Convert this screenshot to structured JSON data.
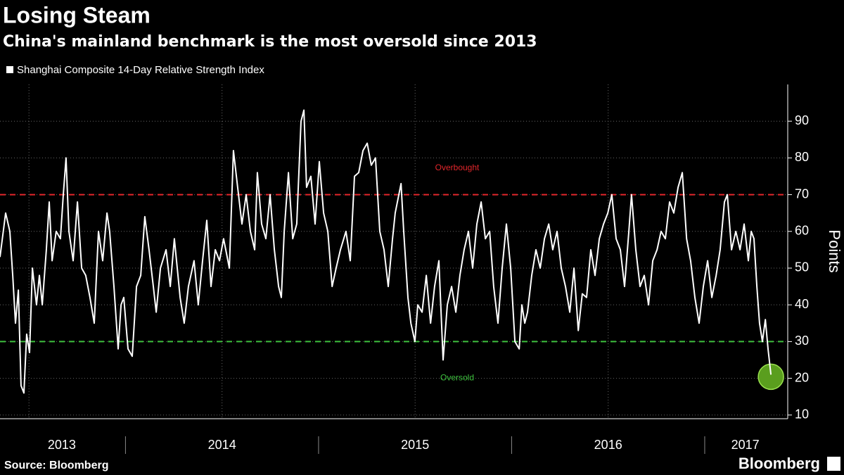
{
  "chart_data": {
    "type": "line",
    "title": "Losing Steam",
    "subtitle": "China's mainland benchmark is the most oversold since 2013",
    "y_label": "Points",
    "source": "Source: Bloomberg",
    "logo": "Bloomberg",
    "series": [
      {
        "name": "Shanghai Composite 14-Day Relative Strength Index",
        "color": "#ffffff"
      }
    ],
    "x": [
      2013.35,
      2013.379,
      2013.401,
      2013.416,
      2013.43,
      2013.445,
      2013.459,
      2013.474,
      2013.488,
      2013.503,
      2013.518,
      2013.539,
      2013.554,
      2013.569,
      2013.59,
      2013.605,
      2013.62,
      2013.641,
      2013.663,
      2013.678,
      2013.692,
      2013.707,
      2013.729,
      2013.751,
      2013.773,
      2013.794,
      2013.816,
      2013.838,
      2013.86,
      2013.882,
      2013.904,
      2013.918,
      2013.94,
      2013.962,
      2013.977,
      2013.991,
      2014.013,
      2014.035,
      2014.057,
      2014.079,
      2014.1,
      2014.122,
      2014.144,
      2014.159,
      2014.181,
      2014.21,
      2014.232,
      2014.253,
      2014.283,
      2014.304,
      2014.326,
      2014.355,
      2014.377,
      2014.399,
      2014.421,
      2014.443,
      2014.465,
      2014.487,
      2014.508,
      2014.538,
      2014.559,
      2014.581,
      2014.603,
      2014.625,
      2014.647,
      2014.669,
      2014.683,
      2014.705,
      2014.727,
      2014.749,
      2014.771,
      2014.793,
      2014.807,
      2014.822,
      2014.844,
      2014.866,
      2014.887,
      2014.909,
      2014.924,
      2014.938,
      2014.96,
      2014.982,
      2015.004,
      2015.026,
      2015.048,
      2015.07,
      2015.091,
      2015.113,
      2015.142,
      2015.164,
      2015.186,
      2015.208,
      2015.23,
      2015.252,
      2015.273,
      2015.295,
      2015.317,
      2015.339,
      2015.361,
      2015.383,
      2015.397,
      2015.427,
      2015.441,
      2015.463,
      2015.478,
      2015.499,
      2015.514,
      2015.536,
      2015.558,
      2015.58,
      2015.601,
      2015.623,
      2015.645,
      2015.667,
      2015.689,
      2015.711,
      2015.732,
      2015.754,
      2015.776,
      2015.798,
      2015.82,
      2015.842,
      2015.864,
      2015.886,
      2015.907,
      2015.929,
      2015.951,
      2015.973,
      2015.995,
      2016.017,
      2016.039,
      2016.053,
      2016.068,
      2016.082,
      2016.104,
      2016.126,
      2016.148,
      2016.17,
      2016.192,
      2016.213,
      2016.235,
      2016.257,
      2016.279,
      2016.301,
      2016.323,
      2016.345,
      2016.366,
      2016.388,
      2016.41,
      2016.432,
      2016.454,
      2016.476,
      2016.498,
      2016.519,
      2016.541,
      2016.563,
      2016.585,
      2016.607,
      2016.621,
      2016.643,
      2016.665,
      2016.687,
      2016.709,
      2016.731,
      2016.753,
      2016.774,
      2016.796,
      2016.818,
      2016.84,
      2016.862,
      2016.884,
      2016.906,
      2016.927,
      2016.949,
      2016.971,
      2016.993,
      2017.015,
      2017.037,
      2017.059,
      2017.08,
      2017.102,
      2017.117,
      2017.139,
      2017.161,
      2017.183,
      2017.204,
      2017.226,
      2017.241,
      2017.255,
      2017.27,
      2017.284,
      2017.299,
      2017.314,
      2017.328,
      2017.343
    ],
    "values": [
      53,
      65,
      60,
      48,
      35,
      44,
      18,
      16,
      32,
      27,
      50,
      40,
      48,
      40,
      55,
      68,
      52,
      60,
      58,
      70,
      80,
      60,
      52,
      68,
      50,
      48,
      42,
      35,
      60,
      52,
      65,
      60,
      45,
      28,
      40,
      42,
      28,
      26,
      45,
      48,
      64,
      55,
      45,
      38,
      50,
      55,
      45,
      58,
      42,
      35,
      45,
      52,
      40,
      52,
      63,
      45,
      55,
      52,
      58,
      50,
      82,
      72,
      62,
      70,
      60,
      55,
      76,
      62,
      58,
      70,
      55,
      45,
      42,
      60,
      76,
      58,
      62,
      90,
      93,
      72,
      75,
      62,
      79,
      65,
      60,
      45,
      50,
      55,
      60,
      52,
      75,
      76,
      82,
      84,
      78,
      80,
      60,
      55,
      45,
      58,
      65,
      73,
      60,
      42,
      35,
      30,
      40,
      38,
      48,
      35,
      45,
      52,
      25,
      40,
      45,
      38,
      48,
      55,
      60,
      50,
      62,
      68,
      58,
      60,
      45,
      35,
      50,
      62,
      50,
      30,
      28,
      40,
      35,
      38,
      48,
      55,
      50,
      58,
      62,
      55,
      60,
      50,
      45,
      38,
      50,
      33,
      43,
      42,
      55,
      48,
      58,
      62,
      65,
      70,
      58,
      55,
      45,
      60,
      70,
      55,
      45,
      48,
      40,
      52,
      55,
      60,
      58,
      68,
      65,
      72,
      76,
      58,
      52,
      42,
      35,
      45,
      52,
      42,
      48,
      55,
      68,
      70,
      55,
      60,
      55,
      62,
      52,
      60,
      58,
      45,
      35,
      30,
      36,
      28,
      21
    ],
    "xlim": [
      2013.35,
      2017.43
    ],
    "xticks": [
      {
        "value": 2013.67,
        "label": "2013"
      },
      {
        "value": 2014.5,
        "label": "2014"
      },
      {
        "value": 2015.5,
        "label": "2015"
      },
      {
        "value": 2016.5,
        "label": "2016"
      },
      {
        "value": 2017.21,
        "label": "2017"
      }
    ],
    "x_separators": [
      2014,
      2015,
      2016,
      2017
    ],
    "xgrid": [
      2013.5,
      2014.5,
      2015.5,
      2016.5
    ],
    "ylim": [
      9,
      100
    ],
    "yticks": [
      10,
      20,
      30,
      40,
      50,
      60,
      70,
      80,
      90
    ],
    "grid": true,
    "reference_lines": [
      {
        "value": 70,
        "color": "#e3262b",
        "label": "Overbought"
      },
      {
        "value": 30,
        "color": "#3ec13e",
        "label": "Oversold"
      }
    ]
  }
}
